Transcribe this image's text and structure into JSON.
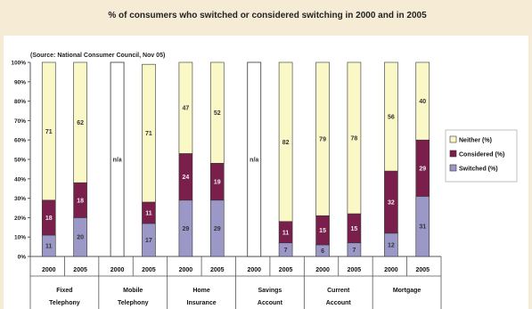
{
  "chart_data": {
    "type": "bar",
    "stacked": true,
    "title": "% of consumers who switched or considered switching in 2000 and in 2005",
    "source_note": "(Source: National Consumer Council, Nov 05)",
    "ylim": [
      0,
      100
    ],
    "yticks": [
      "0%",
      "10%",
      "20%",
      "30%",
      "40%",
      "50%",
      "60%",
      "70%",
      "80%",
      "90%",
      "100%"
    ],
    "groups": [
      {
        "name": "Fixed Telephony",
        "lines": [
          "Fixed",
          "Telephony"
        ]
      },
      {
        "name": "Mobile Telephony",
        "lines": [
          "Mobile",
          "Telephony"
        ]
      },
      {
        "name": "Home Insurance",
        "lines": [
          "Home",
          "Insurance"
        ]
      },
      {
        "name": "Savings Account",
        "lines": [
          "Savings",
          "Account"
        ]
      },
      {
        "name": "Current Account",
        "lines": [
          "Current",
          "Account"
        ]
      },
      {
        "name": "Mortgage",
        "lines": [
          "Mortgage",
          ""
        ]
      }
    ],
    "years": [
      "2000",
      "2005"
    ],
    "na_label": "n/a",
    "series": [
      {
        "name": "Switched (%)",
        "color": "#9b98c8",
        "values": [
          11,
          20,
          null,
          17,
          29,
          29,
          null,
          7,
          6,
          7,
          12,
          31
        ]
      },
      {
        "name": "Considered (%)",
        "color": "#7a1f4c",
        "values": [
          18,
          18,
          null,
          11,
          24,
          19,
          null,
          11,
          15,
          15,
          32,
          29
        ]
      },
      {
        "name": "Neither (%)",
        "color": "#fbf8c8",
        "values": [
          71,
          62,
          null,
          71,
          47,
          52,
          null,
          82,
          79,
          78,
          56,
          40
        ]
      }
    ],
    "legend_order": [
      "Neither (%)",
      "Considered (%)",
      "Switched (%)"
    ],
    "legend_position": "right"
  }
}
